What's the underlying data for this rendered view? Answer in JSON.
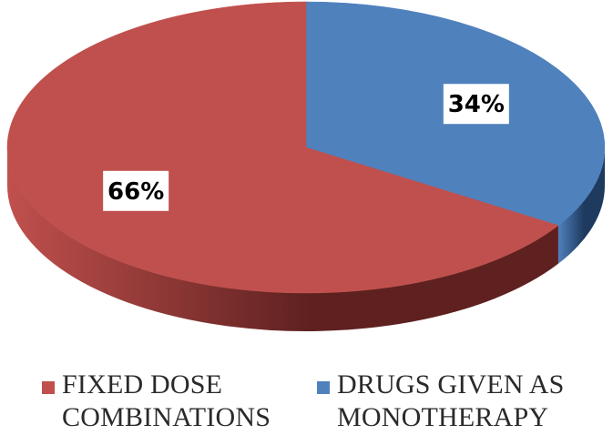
{
  "chart_data": {
    "type": "pie",
    "title": "",
    "three_d": true,
    "legend_position": "bottom",
    "slices": [
      {
        "label": "DRUGS GIVEN AS MONOTHERAPY",
        "value": 34,
        "data_label": "34%",
        "color": "#4f81bd",
        "side_color": "#1f3a5f"
      },
      {
        "label": "FIXED DOSE COMBINATIONS",
        "value": 66,
        "data_label": "66%",
        "color": "#c0504d",
        "side_color": "#5e2120"
      }
    ]
  }
}
